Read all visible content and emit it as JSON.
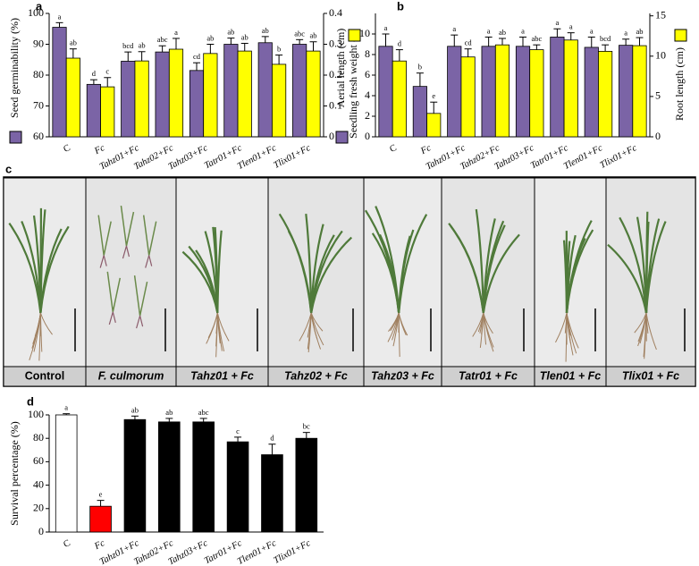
{
  "chart_data": [
    {
      "type": "bar",
      "panel_label": "a",
      "categories": [
        "C",
        "Fc",
        "Tahz01+Fc",
        "Tahz02+Fc",
        "Tahz03+Fc",
        "Tatr01+Fc",
        "Tlen01+Fc",
        "Tlix01+Fc"
      ],
      "ylim": [
        60,
        100
      ],
      "yticks": [
        60,
        70,
        80,
        90,
        100
      ],
      "y2lim": [
        0,
        0.4
      ],
      "y2ticks": [
        0,
        0.1,
        0.2,
        0.3,
        0.4
      ],
      "series": [
        {
          "name": "Seed germinability (%)",
          "color": "#7b64a6",
          "values": [
            95.5,
            77,
            84.5,
            87.5,
            81.5,
            90,
            90.5,
            90
          ],
          "errors": [
            1.5,
            1.5,
            3,
            2,
            2.5,
            2,
            2,
            1.5
          ],
          "labels": [
            "a",
            "d",
            "bcd",
            "abc",
            "cd",
            "ab",
            "ab",
            "abc"
          ]
        },
        {
          "name": "Seedling fresh weight (g)",
          "color": "#ffff00",
          "axis": "y2",
          "values": [
            0.255,
            0.162,
            0.246,
            0.284,
            0.27,
            0.278,
            0.235,
            0.278
          ],
          "errors": [
            0.03,
            0.03,
            0.03,
            0.035,
            0.03,
            0.025,
            0.03,
            0.03
          ],
          "labels": [
            "ab",
            "c",
            "ab",
            "a",
            "ab",
            "ab",
            "b",
            "ab"
          ]
        }
      ]
    },
    {
      "type": "bar",
      "panel_label": "b",
      "categories": [
        "C",
        "Fc",
        "Tahz01+Fc",
        "Tahz02+Fc",
        "Tahz03+Fc",
        "Tatr01+Fc",
        "Tlen01+Fc",
        "Tlix01+Fc"
      ],
      "ylim": [
        0,
        12
      ],
      "yticks": [
        0,
        2,
        4,
        6,
        8,
        10
      ],
      "y2lim": [
        0,
        15.3
      ],
      "y2ticks": [
        0,
        5,
        10,
        15
      ],
      "series": [
        {
          "name": "Aerial length (cm)",
          "color": "#7b64a6",
          "values": [
            8.8,
            4.9,
            8.8,
            8.8,
            8.8,
            9.7,
            8.7,
            8.9
          ],
          "errors": [
            1.2,
            1.3,
            1.1,
            0.9,
            0.9,
            0.8,
            1,
            0.6
          ],
          "labels": [
            "a",
            "b",
            "a",
            "a",
            "a",
            "a",
            "a",
            "a"
          ]
        },
        {
          "name": "Root length (cm)",
          "color": "#ffff00",
          "axis": "y2",
          "values": [
            9.4,
            2.9,
            9.9,
            11.4,
            10.8,
            12,
            10.6,
            11.3
          ],
          "errors": [
            1.4,
            1.4,
            1,
            0.8,
            0.6,
            0.9,
            0.8,
            1
          ],
          "labels": [
            "d",
            "e",
            "cd",
            "ab",
            "abc",
            "a",
            "bcd",
            "ab"
          ]
        }
      ]
    },
    {
      "type": "bar",
      "panel_label": "d",
      "categories": [
        "C",
        "Fc",
        "Tahz01+Fc",
        "Tahz02+Fc",
        "Tahz03+Fc",
        "Tatr01+Fc",
        "Tlen01+Fc",
        "Tlix01+Fc"
      ],
      "ylim": [
        0,
        100
      ],
      "yticks": [
        0,
        20,
        40,
        60,
        80,
        100
      ],
      "series": [
        {
          "name": "Survival percentage (%)",
          "colors": [
            "#ffffff",
            "#ff0000",
            "#000000",
            "#000000",
            "#000000",
            "#000000",
            "#000000",
            "#000000"
          ],
          "values": [
            100,
            22,
            96,
            94,
            94,
            77,
            66,
            80
          ],
          "errors": [
            1,
            5,
            3,
            3,
            3,
            4,
            9,
            5
          ],
          "labels": [
            "a",
            "e",
            "ab",
            "ab",
            "abc",
            "c",
            "d",
            "bc"
          ]
        }
      ]
    }
  ],
  "photo_panel": {
    "panel_label": "c",
    "captions": [
      "Control",
      "F. culmorum",
      "Tahz01 + Fc",
      "Tahz02 + Fc",
      "Tahz03 + Fc",
      "Tatr01 + Fc",
      "Tlen01 + Fc",
      "Tlix01 + Fc"
    ]
  }
}
